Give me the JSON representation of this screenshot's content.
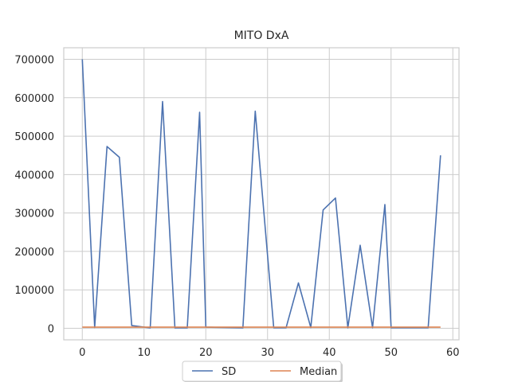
{
  "chart_data": {
    "type": "line",
    "title": "MITO DxA",
    "xlabel": "",
    "ylabel": "",
    "xlim": [
      -3,
      61
    ],
    "ylim": [
      -30000,
      730000
    ],
    "xticks": [
      0,
      10,
      20,
      30,
      40,
      50,
      60
    ],
    "yticks": [
      0,
      100000,
      200000,
      300000,
      400000,
      500000,
      600000,
      700000
    ],
    "grid": true,
    "legend_position": "bottom-center",
    "series": [
      {
        "name": "SD",
        "color": "#4c72b0",
        "x": [
          0,
          2,
          4,
          6,
          8,
          11,
          13,
          15,
          17,
          19,
          20,
          26,
          28,
          31,
          33,
          35,
          37,
          39,
          41,
          43,
          45,
          47,
          49,
          50,
          56,
          58
        ],
        "y": [
          700000,
          2000,
          473000,
          445000,
          7000,
          1000,
          590000,
          1000,
          1000,
          562000,
          3000,
          1000,
          565000,
          1500,
          1500,
          118000,
          2000,
          308000,
          339000,
          1500,
          216000,
          1500,
          322000,
          1500,
          1500,
          450000
        ]
      },
      {
        "name": "Median",
        "color": "#dd8452",
        "x": [
          0,
          58
        ],
        "y": [
          3000,
          3000
        ]
      }
    ]
  }
}
